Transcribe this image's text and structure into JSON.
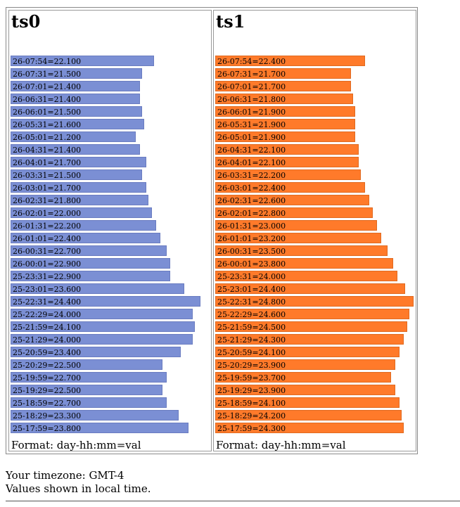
{
  "footer_format": "Format: day-hh:mm=val",
  "timezone_text": "Your timezone: GMT-4",
  "local_time_text": "Values shown in local time.",
  "colors": {
    "ts0": "#7b8fd4",
    "ts1": "#ff7a2a"
  },
  "chart_data": [
    {
      "type": "bar",
      "orientation": "horizontal",
      "title": "ts0",
      "categories": [
        "26-07:54",
        "26-07:31",
        "26-07:01",
        "26-06:31",
        "26-06:01",
        "26-05:31",
        "26-05:01",
        "26-04:31",
        "26-04:01",
        "26-03:31",
        "26-03:01",
        "26-02:31",
        "26-02:01",
        "26-01:31",
        "26-01:01",
        "26-00:31",
        "26-00:01",
        "25-23:31",
        "25-23:01",
        "25-22:31",
        "25-22:29",
        "25-21:59",
        "25-21:29",
        "25-20:59",
        "25-20:29",
        "25-19:59",
        "25-19:29",
        "25-18:59",
        "25-18:29",
        "25-17:59"
      ],
      "values": [
        22.1,
        21.5,
        21.4,
        21.4,
        21.5,
        21.6,
        21.2,
        21.4,
        21.7,
        21.5,
        21.7,
        21.8,
        22.0,
        22.2,
        22.4,
        22.7,
        22.9,
        22.9,
        23.6,
        24.4,
        24.0,
        24.1,
        24.0,
        23.4,
        22.5,
        22.7,
        22.5,
        22.7,
        23.3,
        23.8
      ],
      "labels": [
        "26-07:54=22.100",
        "26-07:31=21.500",
        "26-07:01=21.400",
        "26-06:31=21.400",
        "26-06:01=21.500",
        "26-05:31=21.600",
        "26-05:01=21.200",
        "26-04:31=21.400",
        "26-04:01=21.700",
        "26-03:31=21.500",
        "26-03:01=21.700",
        "26-02:31=21.800",
        "26-02:01=22.000",
        "26-01:31=22.200",
        "26-01:01=22.400",
        "26-00:31=22.700",
        "26-00:01=22.900",
        "25-23:31=22.900",
        "25-23:01=23.600",
        "25-22:31=24.400",
        "25-22:29=24.000",
        "25-21:59=24.100",
        "25-21:29=24.000",
        "25-20:59=23.400",
        "25-20:29=22.500",
        "25-19:59=22.700",
        "25-19:29=22.500",
        "25-18:59=22.700",
        "25-18:29=23.300",
        "25-17:59=23.800"
      ]
    },
    {
      "type": "bar",
      "orientation": "horizontal",
      "title": "ts1",
      "categories": [
        "26-07:54",
        "26-07:31",
        "26-07:01",
        "26-06:31",
        "26-06:01",
        "26-05:31",
        "26-05:01",
        "26-04:31",
        "26-04:01",
        "26-03:31",
        "26-03:01",
        "26-02:31",
        "26-02:01",
        "26-01:31",
        "26-01:01",
        "26-00:31",
        "26-00:01",
        "25-23:31",
        "25-23:01",
        "25-22:31",
        "25-22:29",
        "25-21:59",
        "25-21:29",
        "25-20:59",
        "25-20:29",
        "25-19:59",
        "25-19:29",
        "25-18:59",
        "25-18:29",
        "25-17:59"
      ],
      "values": [
        22.4,
        21.7,
        21.7,
        21.8,
        21.9,
        21.9,
        21.9,
        22.1,
        22.1,
        22.2,
        22.4,
        22.6,
        22.8,
        23.0,
        23.2,
        23.5,
        23.8,
        24.0,
        24.4,
        24.8,
        24.6,
        24.5,
        24.3,
        24.1,
        23.9,
        23.7,
        23.9,
        24.1,
        24.2,
        24.3
      ],
      "labels": [
        "26-07:54=22.400",
        "26-07:31=21.700",
        "26-07:01=21.700",
        "26-06:31=21.800",
        "26-06:01=21.900",
        "26-05:31=21.900",
        "26-05:01=21.900",
        "26-04:31=22.100",
        "26-04:01=22.100",
        "26-03:31=22.200",
        "26-03:01=22.400",
        "26-02:31=22.600",
        "26-02:01=22.800",
        "26-01:31=23.000",
        "26-01:01=23.200",
        "26-00:31=23.500",
        "26-00:01=23.800",
        "25-23:31=24.000",
        "25-23:01=24.400",
        "25-22:31=24.800",
        "25-22:29=24.600",
        "25-21:59=24.500",
        "25-21:29=24.300",
        "25-20:59=24.100",
        "25-20:29=23.900",
        "25-19:59=23.700",
        "25-19:29=23.900",
        "25-18:59=24.100",
        "25-18:29=24.200",
        "25-17:59=24.300"
      ]
    }
  ]
}
